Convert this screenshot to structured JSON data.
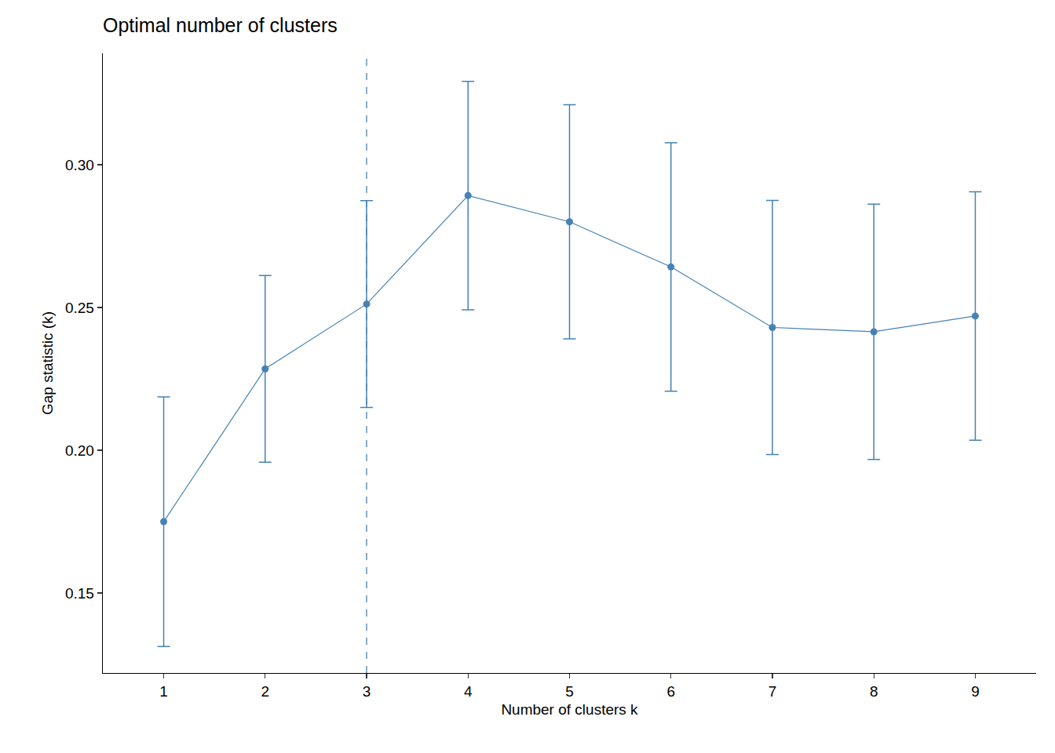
{
  "chart_data": {
    "type": "line",
    "title": "Optimal number of clusters",
    "x_label": "Number of clusters k",
    "y_label": "Gap statistic (k)",
    "x": [
      1,
      2,
      3,
      4,
      5,
      6,
      7,
      8,
      9
    ],
    "values": [
      0.175,
      0.2285,
      0.2512,
      0.2892,
      0.28,
      0.2642,
      0.243,
      0.2415,
      0.247
    ],
    "errors": [
      0.0437,
      0.0327,
      0.0362,
      0.04,
      0.041,
      0.0435,
      0.0445,
      0.0447,
      0.0435
    ],
    "optimal_k": 3,
    "color": "#4682b4",
    "marker": "circle",
    "xlim": [
      0.4,
      9.6
    ],
    "xticks": [
      1,
      2,
      3,
      4,
      5,
      6,
      7,
      8,
      9
    ],
    "ylim": [
      0.122,
      0.339
    ],
    "yticks": [
      0.15,
      {
        "value": 0.2,
        "label": "0.20"
      },
      0.25,
      {
        "value": 0.3,
        "label": "0.30"
      }
    ],
    "grid": false
  }
}
